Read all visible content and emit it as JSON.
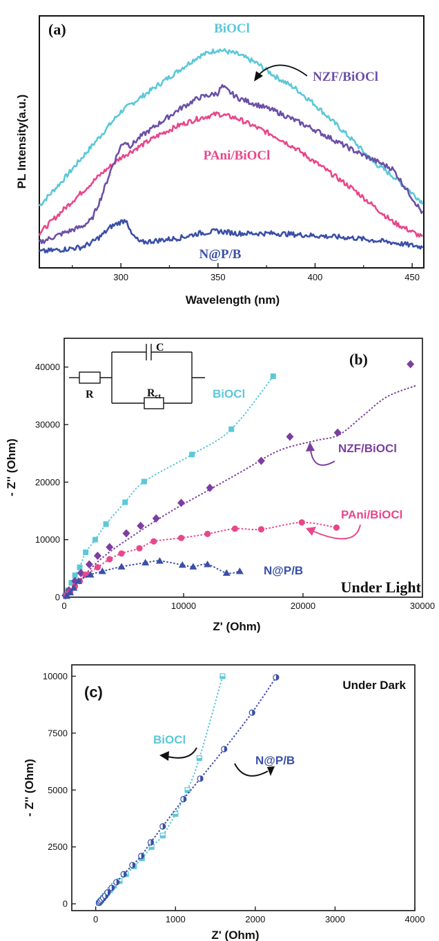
{
  "chart_data": [
    {
      "panel_label": "(a)",
      "type": "line",
      "xlabel": "Wavelength (nm)",
      "ylabel": "PL Intensity(a.u.)",
      "xlim": [
        258,
        456
      ],
      "xticks": [
        "300",
        "350",
        "400",
        "450"
      ],
      "ylim": [
        0,
        100
      ],
      "y_ticks_shown": false,
      "series": [
        {
          "name": "BiOCl",
          "color": "#5bc8d8",
          "x": [
            258,
            270,
            280,
            290,
            300,
            310,
            320,
            330,
            340,
            350,
            360,
            370,
            380,
            390,
            400,
            410,
            420,
            430,
            440,
            456
          ],
          "y": [
            24,
            35,
            45,
            55,
            65,
            71,
            77,
            83,
            89,
            92,
            90,
            86,
            80,
            75,
            68,
            60,
            52,
            43,
            37,
            25
          ]
        },
        {
          "name": "NZF/BiOCl",
          "color": "#6a4fa8",
          "x": [
            258,
            270,
            280,
            285,
            290,
            295,
            300,
            302,
            305,
            310,
            320,
            330,
            340,
            350,
            352,
            360,
            380,
            400,
            420,
            440,
            456
          ],
          "y": [
            8,
            12,
            15,
            18,
            28,
            40,
            50,
            52,
            50,
            54,
            60,
            66,
            71,
            73,
            76,
            71,
            65,
            57,
            48,
            40,
            20
          ],
          "note": "curve shifted upward from lower-left"
        },
        {
          "name": "PAni/BiOCl",
          "color": "#e8478b",
          "x": [
            258,
            270,
            280,
            290,
            300,
            310,
            320,
            330,
            340,
            350,
            360,
            370,
            380,
            390,
            400,
            410,
            420,
            430,
            440,
            456
          ],
          "y": [
            12,
            22,
            30,
            38,
            45,
            50,
            55,
            59,
            62,
            64,
            62,
            58,
            54,
            49,
            43,
            37,
            31,
            24,
            17,
            10
          ]
        },
        {
          "name": "N@P/B",
          "color": "#3a4fa8",
          "x": [
            258,
            270,
            280,
            285,
            290,
            295,
            300,
            303,
            305,
            310,
            320,
            330,
            340,
            350,
            360,
            380,
            400,
            420,
            440,
            456
          ],
          "y": [
            4,
            5,
            6,
            8,
            11,
            15,
            17,
            18,
            12,
            8,
            9,
            10,
            12,
            13,
            12,
            12,
            11,
            10,
            8,
            6
          ]
        }
      ]
    },
    {
      "panel_label": "(b)",
      "type": "scatter",
      "xlabel": "Z' (Ohm)",
      "ylabel": "- Z'' (Ohm)",
      "xlim": [
        0,
        30000
      ],
      "ylim": [
        0,
        45000
      ],
      "xticks": [
        "0",
        "10000",
        "20000",
        "30000"
      ],
      "yticks": [
        "0",
        "10000",
        "20000",
        "30000",
        "40000"
      ],
      "annotation": "Under Light",
      "circuit": {
        "labels": [
          "C",
          "R",
          "R",
          "ct"
        ]
      },
      "series": [
        {
          "name": "BiOCl",
          "color": "#5bc8d8",
          "marker": "square",
          "x": [
            100,
            300,
            600,
            900,
            1300,
            1800,
            2600,
            3500,
            5100,
            6700,
            10700,
            14000,
            17500
          ],
          "y": [
            400,
            1200,
            2500,
            3800,
            5200,
            7800,
            10000,
            12700,
            16500,
            20100,
            24800,
            29200,
            38400
          ]
        },
        {
          "name": "NZF/BiOCl",
          "color": "#7b3fa0",
          "marker": "diamond",
          "x": [
            100,
            400,
            900,
            1400,
            2100,
            2800,
            3800,
            5200,
            6400,
            7700,
            9800,
            12200,
            16500,
            18900,
            22900,
            29000
          ],
          "y": [
            300,
            1200,
            2800,
            4200,
            5700,
            7200,
            8700,
            11100,
            12400,
            13700,
            16400,
            19000,
            23700,
            27900,
            28600,
            40500
          ],
          "fit": [
            [
              0,
              0
            ],
            [
              3000,
              6500
            ],
            [
              6000,
              11000
            ],
            [
              9000,
              15000
            ],
            [
              12000,
              18500
            ],
            [
              15000,
              22000
            ],
            [
              18000,
              25500
            ],
            [
              21000,
              27200
            ],
            [
              23000,
              28200
            ],
            [
              25000,
              31500
            ],
            [
              27000,
              34800
            ],
            [
              29500,
              36800
            ]
          ]
        },
        {
          "name": "PAni/BiOCl",
          "color": "#e8478b",
          "marker": "circle",
          "x": [
            200,
            500,
            900,
            1300,
            1800,
            2800,
            3800,
            4800,
            6300,
            7500,
            9800,
            12000,
            14300,
            16500,
            19900,
            22800
          ],
          "y": [
            300,
            900,
            1900,
            2800,
            3900,
            5200,
            6600,
            7600,
            8500,
            9700,
            10300,
            11000,
            11900,
            11800,
            13000,
            12100
          ]
        },
        {
          "name": "N@P/B",
          "color": "#3a4fa8",
          "marker": "triangle",
          "x": [
            200,
            500,
            800,
            1200,
            2200,
            3200,
            4800,
            6800,
            8000,
            9900,
            10800,
            12000,
            13600,
            14700
          ],
          "y": [
            200,
            800,
            1600,
            2800,
            3900,
            4500,
            5300,
            6000,
            6300,
            5600,
            5300,
            5700,
            4200,
            4500
          ]
        }
      ]
    },
    {
      "panel_label": "(c)",
      "type": "scatter",
      "xlabel": "Z' (Ohm)",
      "ylabel": "- Z'' (Ohm)",
      "xlim": [
        -300,
        4000
      ],
      "ylim": [
        -300,
        10500
      ],
      "xticks": [
        "0",
        "1000",
        "2000",
        "3000",
        "4000"
      ],
      "yticks": [
        "0",
        "2500",
        "5000",
        "7500",
        "10000"
      ],
      "annotation": "Under Dark",
      "series": [
        {
          "name": "BiOCl",
          "color": "#5bc8d8",
          "marker": "half-square",
          "x": [
            40,
            55,
            70,
            90,
            110,
            140,
            180,
            230,
            300,
            380,
            480,
            580,
            700,
            840,
            1000,
            1150,
            1300,
            1590
          ],
          "y": [
            40,
            100,
            150,
            250,
            350,
            450,
            600,
            800,
            1000,
            1300,
            1650,
            2000,
            2500,
            3000,
            3950,
            5000,
            6400,
            10000
          ]
        },
        {
          "name": "N@P/B",
          "color": "#3a4fa8",
          "marker": "half-circle",
          "x": [
            40,
            50,
            60,
            75,
            95,
            120,
            150,
            200,
            260,
            350,
            460,
            570,
            690,
            840,
            1100,
            1310,
            1610,
            1960,
            2260
          ],
          "y": [
            40,
            80,
            130,
            180,
            250,
            350,
            500,
            700,
            950,
            1300,
            1700,
            2100,
            2700,
            3400,
            4600,
            5500,
            6800,
            8400,
            9950
          ]
        }
      ]
    }
  ]
}
